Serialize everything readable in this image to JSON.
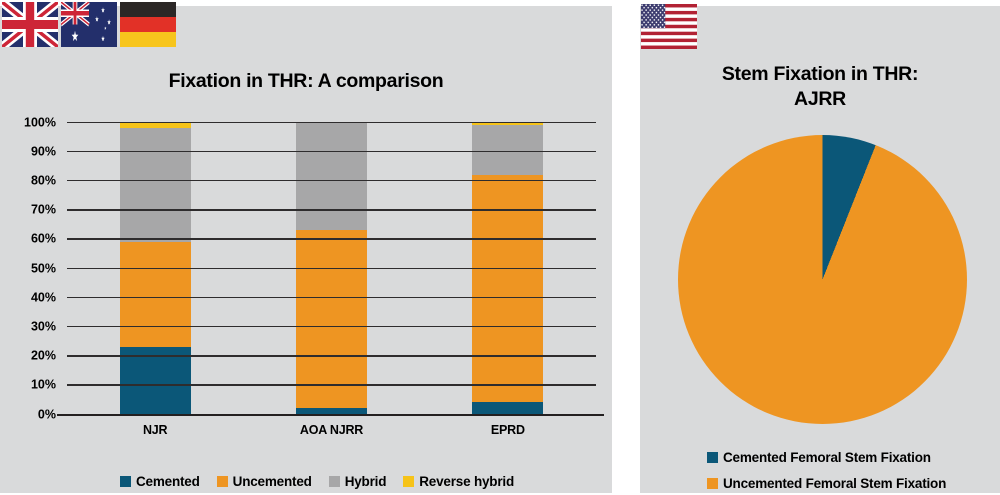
{
  "page": {
    "background": "#ffffff",
    "panel_background": "#d9dadb",
    "grid_color": "#2e2c2d",
    "text_color": "#000000"
  },
  "left_panel": {
    "title": "Fixation in THR: A comparison",
    "flags": [
      {
        "name": "uk-flag",
        "label": "United Kingdom"
      },
      {
        "name": "australia-flag",
        "label": "Australia"
      },
      {
        "name": "germany-flag",
        "label": "Germany"
      }
    ]
  },
  "right_panel": {
    "title": "Stem Fixation in THR: AJRR",
    "title_lines": [
      "Stem Fixation in THR:",
      "AJRR"
    ],
    "flags": [
      {
        "name": "us-flag",
        "label": "United States"
      }
    ]
  },
  "chart_data": [
    {
      "type": "bar",
      "stacked": true,
      "title": "Fixation in THR: A comparison",
      "categories": [
        "NJR",
        "AOA NJRR",
        "EPRD"
      ],
      "series": [
        {
          "name": "Cemented",
          "color": "#0b5778",
          "values": [
            23,
            2,
            4
          ]
        },
        {
          "name": "Uncemented",
          "color": "#ee9522",
          "values": [
            36,
            61,
            78
          ]
        },
        {
          "name": "Hybrid",
          "color": "#a7a7a8",
          "values": [
            39,
            37,
            17
          ]
        },
        {
          "name": "Reverse hybrid",
          "color": "#f6c318",
          "values": [
            2,
            0,
            1
          ]
        }
      ],
      "value_unit": "%",
      "ylim": [
        0,
        100
      ],
      "ytick_labels": [
        "0%",
        "10%",
        "20%",
        "30%",
        "40%",
        "50%",
        "60%",
        "70%",
        "80%",
        "90%",
        "100%"
      ],
      "grid": true,
      "legend_position": "bottom"
    },
    {
      "type": "pie",
      "title": "Stem Fixation in THR: AJRR",
      "start_angle_deg": 0,
      "slices": [
        {
          "name": "Cemented Femoral Stem Fixation",
          "value": 6,
          "color": "#0b5778"
        },
        {
          "name": "Uncemented Femoral Stem Fixation",
          "value": 94,
          "color": "#ee9522"
        }
      ],
      "legend_position": "bottom"
    }
  ]
}
